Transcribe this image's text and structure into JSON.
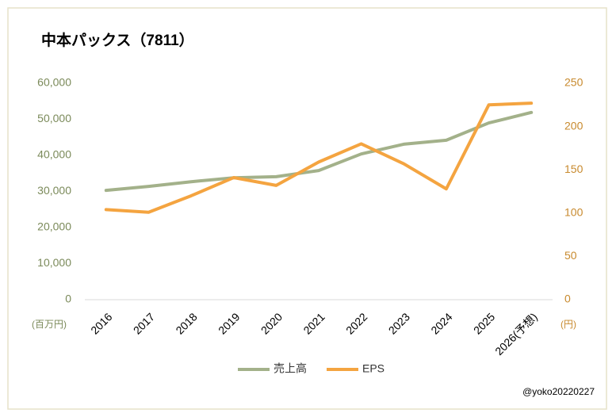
{
  "chart_data": {
    "type": "line",
    "title": "中本パックス（7811）",
    "categories": [
      "2016",
      "2017",
      "2018",
      "2019",
      "2020",
      "2021",
      "2022",
      "2023",
      "2024",
      "2025",
      "2026(予想)"
    ],
    "series": [
      {
        "name": "売上高",
        "color": "#a3b18a",
        "values": [
          30300,
          31400,
          32700,
          33800,
          34100,
          35800,
          40400,
          43100,
          44200,
          49000,
          51900
        ]
      },
      {
        "name": "EPS",
        "color": "#f4a440",
        "axis": "y2",
        "values": [
          104,
          101,
          120,
          141,
          132,
          159,
          180,
          157,
          128,
          225,
          227
        ]
      }
    ],
    "ylim": [
      0,
      60000
    ],
    "yticks": [
      0,
      {
        "value": 10000,
        "label": "10,000"
      },
      {
        "value": 20000,
        "label": "20,000"
      },
      {
        "value": 30000,
        "label": "30,000"
      },
      {
        "value": 40000,
        "label": "40,000"
      },
      {
        "value": 50000,
        "label": "50,000"
      },
      {
        "value": 60000,
        "label": "60,000"
      }
    ],
    "y2lim": [
      0,
      250
    ],
    "y2ticks": [
      0,
      50,
      100,
      150,
      200,
      250
    ],
    "ylabel": "(百万円)",
    "y2label": "(円)",
    "grid": false,
    "legend": "bottom",
    "annotation": "@yoko20220227"
  }
}
